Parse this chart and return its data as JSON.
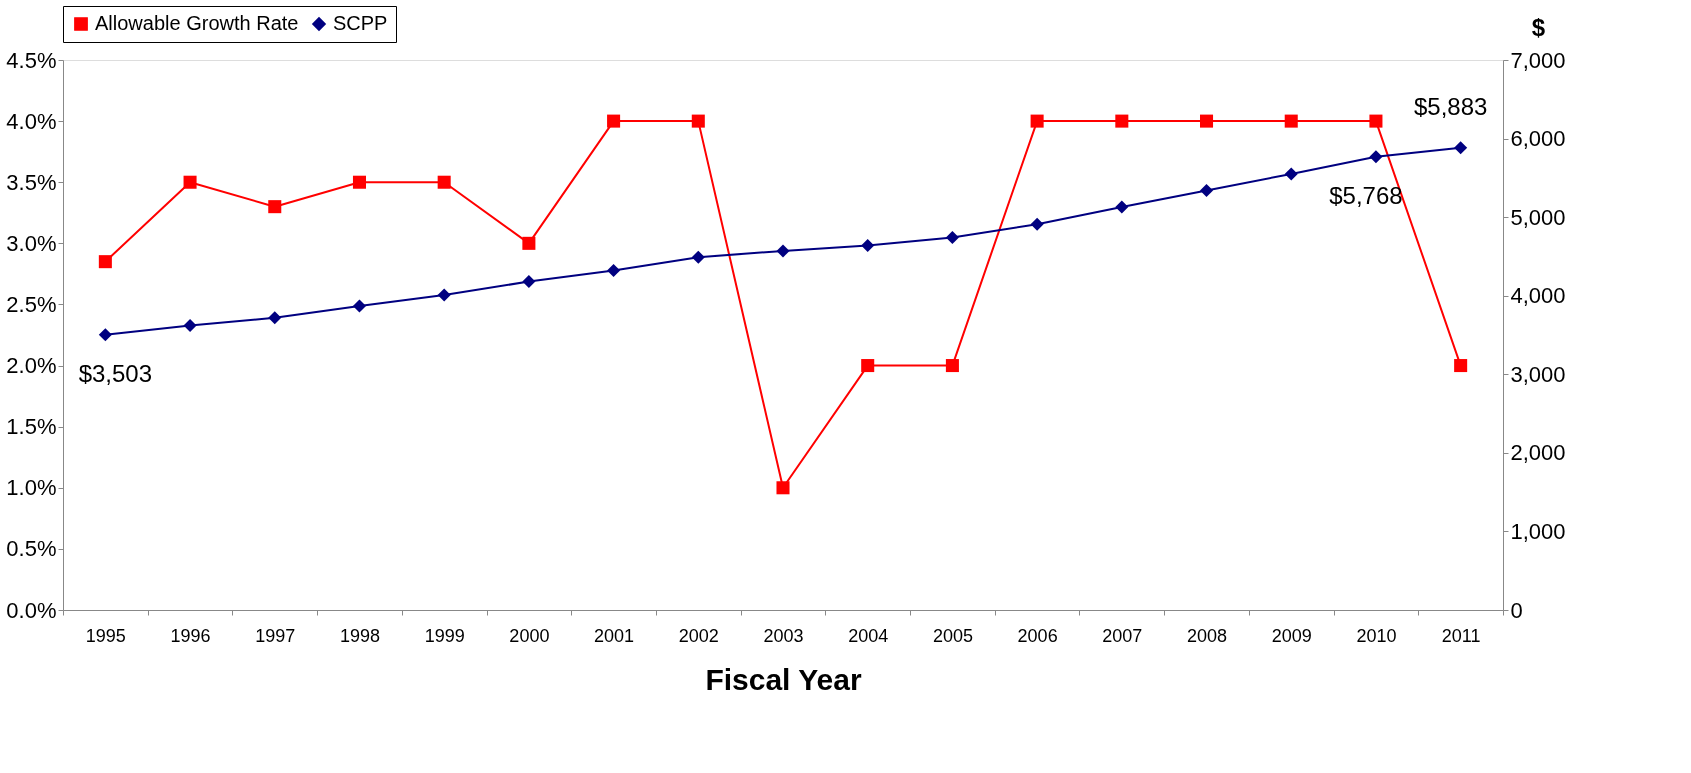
{
  "chart_data": {
    "type": "line",
    "xlabel": "Fiscal Year",
    "y2label": "$",
    "categories": [
      "1995",
      "1996",
      "1997",
      "1998",
      "1999",
      "2000",
      "2001",
      "2002",
      "2003",
      "2004",
      "2005",
      "2006",
      "2007",
      "2008",
      "2009",
      "2010",
      "2011"
    ],
    "series": [
      {
        "name": "Allowable Growth Rate",
        "color": "#ff0000",
        "marker": "square",
        "values": [
          2.85,
          3.5,
          3.3,
          3.5,
          3.5,
          3.0,
          4.0,
          4.0,
          1.0,
          2.0,
          2.0,
          4.0,
          4.0,
          4.0,
          4.0,
          4.0,
          2.0
        ]
      },
      {
        "name": "SCPP",
        "color": "#000080",
        "marker": "diamond",
        "axis": "y2",
        "values": [
          3503,
          3620,
          3720,
          3870,
          4010,
          4180,
          4320,
          4490,
          4570,
          4640,
          4740,
          4910,
          5130,
          5340,
          5550,
          5768,
          5883
        ],
        "value_labels": [
          "$3,503",
          null,
          null,
          null,
          null,
          null,
          null,
          null,
          null,
          null,
          null,
          null,
          null,
          null,
          null,
          "$5,768",
          "$5,883"
        ]
      }
    ],
    "ylim": [
      0,
      4.5
    ],
    "yticks": [
      {
        "value": 0,
        "label": "0.0%"
      },
      {
        "value": 0.5,
        "label": "0.5%"
      },
      {
        "value": 1,
        "label": "1.0%"
      },
      {
        "value": 1.5,
        "label": "1.5%"
      },
      {
        "value": 2,
        "label": "2.0%"
      },
      {
        "value": 2.5,
        "label": "2.5%"
      },
      {
        "value": 3,
        "label": "3.0%"
      },
      {
        "value": 3.5,
        "label": "3.5%"
      },
      {
        "value": 4,
        "label": "4.0%"
      },
      {
        "value": 4.5,
        "label": "4.5%"
      }
    ],
    "y2lim": [
      0,
      7000
    ],
    "y2ticks": [
      0,
      {
        "value": 1000,
        "label": "1,000"
      },
      {
        "value": 2000,
        "label": "2,000"
      },
      {
        "value": 3000,
        "label": "3,000"
      },
      {
        "value": 4000,
        "label": "4,000"
      },
      {
        "value": 5000,
        "label": "5,000"
      },
      {
        "value": 6000,
        "label": "6,000"
      },
      {
        "value": 7000,
        "label": "7,000"
      }
    ],
    "legend": "top",
    "grid": false,
    "line_style": "solid"
  }
}
